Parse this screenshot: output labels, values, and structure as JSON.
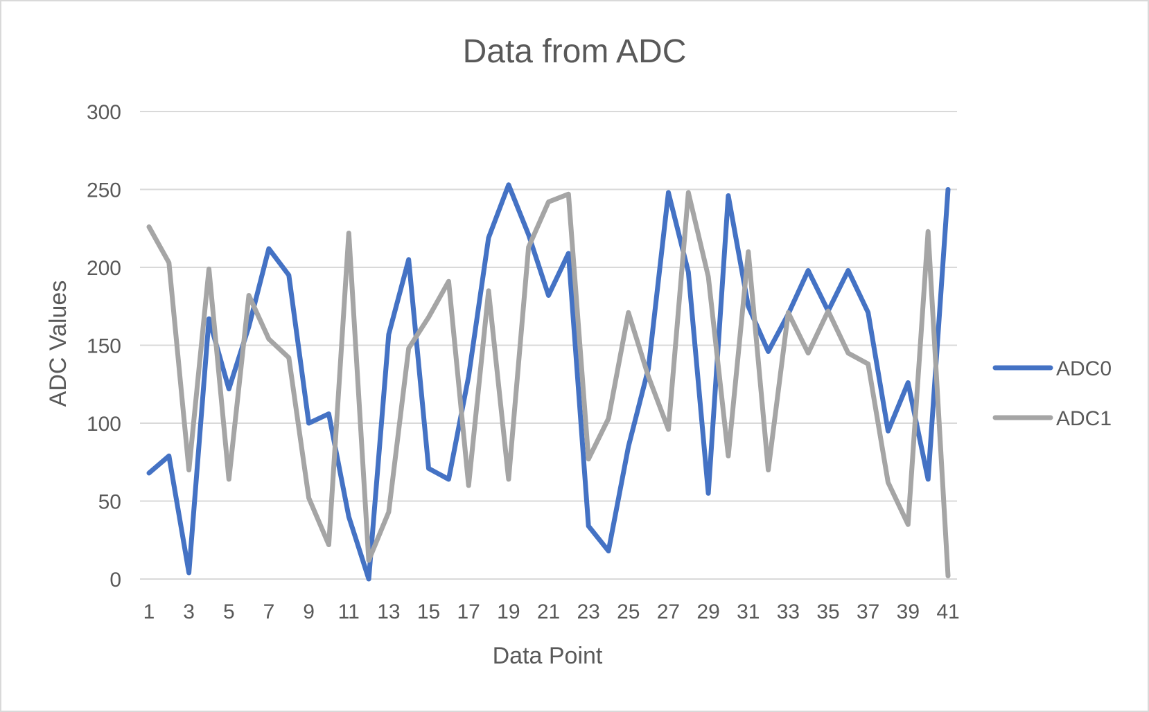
{
  "chart_data": {
    "type": "line",
    "title": "Data from ADC",
    "xlabel": "Data Point",
    "ylabel": "ADC Values",
    "ylim": [
      0,
      300
    ],
    "yticks": [
      "0",
      "50",
      "100",
      "150",
      "200",
      "250",
      "300"
    ],
    "x": [
      1,
      2,
      3,
      4,
      5,
      6,
      7,
      8,
      9,
      10,
      11,
      12,
      13,
      14,
      15,
      16,
      17,
      18,
      19,
      20,
      21,
      22,
      23,
      24,
      25,
      26,
      27,
      28,
      29,
      30,
      31,
      32,
      33,
      34,
      35,
      36,
      37,
      38,
      39,
      40,
      41
    ],
    "xtick_labels": [
      "1",
      "3",
      "5",
      "7",
      "9",
      "11",
      "13",
      "15",
      "17",
      "19",
      "21",
      "23",
      "25",
      "27",
      "29",
      "31",
      "33",
      "35",
      "37",
      "39",
      "41"
    ],
    "grid": true,
    "legend_position": "right",
    "series": [
      {
        "name": "ADC0",
        "color": "#4472c4",
        "values": [
          68,
          79,
          4,
          167,
          122,
          162,
          212,
          195,
          100,
          106,
          40,
          0,
          157,
          205,
          71,
          64,
          130,
          219,
          253,
          221,
          182,
          209,
          34,
          18,
          85,
          135,
          248,
          197,
          55,
          246,
          175,
          146,
          170,
          198,
          172,
          198,
          171,
          95,
          126,
          64,
          250
        ]
      },
      {
        "name": "ADC1",
        "color": "#a5a5a5",
        "values": [
          226,
          203,
          70,
          199,
          64,
          182,
          154,
          142,
          52,
          22,
          222,
          12,
          43,
          148,
          168,
          191,
          60,
          185,
          64,
          213,
          242,
          247,
          77,
          103,
          171,
          130,
          96,
          248,
          194,
          79,
          210,
          70,
          171,
          145,
          172,
          145,
          138,
          62,
          35,
          223,
          2
        ]
      }
    ]
  }
}
